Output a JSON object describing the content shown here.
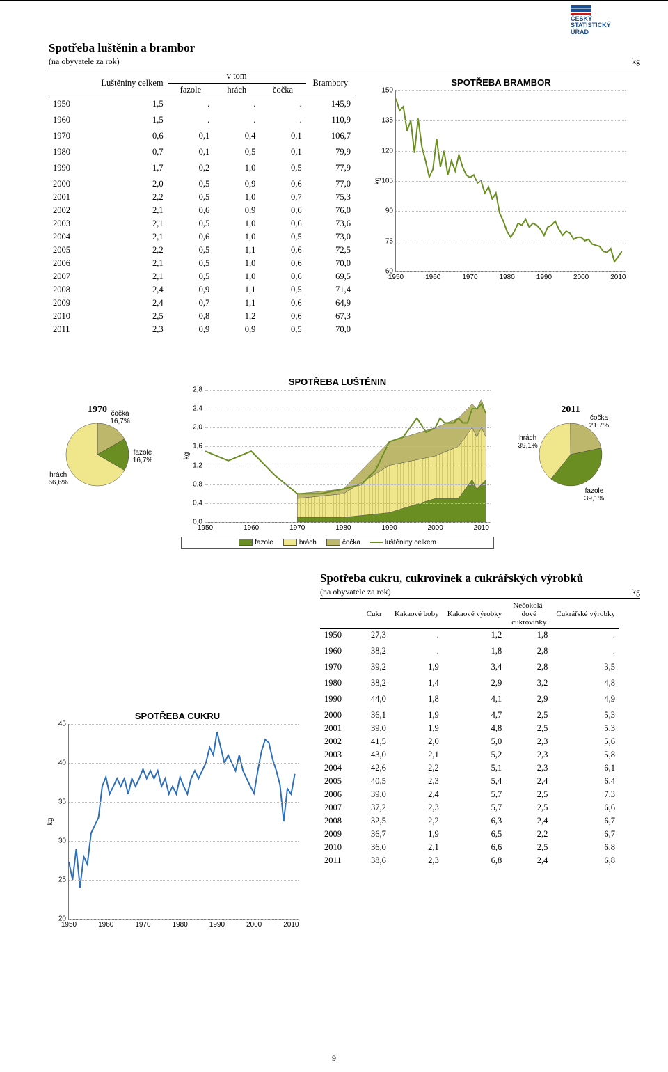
{
  "logo_l1": "ČESKÝ",
  "logo_l2": "STATISTICKÝ",
  "logo_l3": "ÚŘAD",
  "table1": {
    "title": "Spotřeba luštěnin a brambor",
    "subtitle": "(na obyvatele za rok)",
    "unit": "kg",
    "head": {
      "c0": "Luštěniny celkem",
      "group": "v tom",
      "c1": "fazole",
      "c2": "hrách",
      "c3": "čočka",
      "c4": "Brambory"
    },
    "rows": [
      [
        "1950",
        "1,5",
        ".",
        ".",
        ".",
        "145,9"
      ],
      [
        "1960",
        "1,5",
        ".",
        ".",
        ".",
        "110,9"
      ],
      [
        "1970",
        "0,6",
        "0,1",
        "0,4",
        "0,1",
        "106,7"
      ],
      [
        "1980",
        "0,7",
        "0,1",
        "0,5",
        "0,1",
        "79,9"
      ],
      [
        "1990",
        "1,7",
        "0,2",
        "1,0",
        "0,5",
        "77,9"
      ],
      [
        "2000",
        "2,0",
        "0,5",
        "0,9",
        "0,6",
        "77,0"
      ],
      [
        "2001",
        "2,2",
        "0,5",
        "1,0",
        "0,7",
        "75,3"
      ],
      [
        "2002",
        "2,1",
        "0,6",
        "0,9",
        "0,6",
        "76,0"
      ],
      [
        "2003",
        "2,1",
        "0,5",
        "1,0",
        "0,6",
        "73,6"
      ],
      [
        "2004",
        "2,1",
        "0,6",
        "1,0",
        "0,5",
        "73,0"
      ],
      [
        "2005",
        "2,2",
        "0,5",
        "1,1",
        "0,6",
        "72,5"
      ],
      [
        "2006",
        "2,1",
        "0,5",
        "1,0",
        "0,6",
        "70,0"
      ],
      [
        "2007",
        "2,1",
        "0,5",
        "1,0",
        "0,6",
        "69,5"
      ],
      [
        "2008",
        "2,4",
        "0,9",
        "1,1",
        "0,5",
        "71,4"
      ],
      [
        "2009",
        "2,4",
        "0,7",
        "1,1",
        "0,6",
        "64,9"
      ],
      [
        "2010",
        "2,5",
        "0,8",
        "1,2",
        "0,6",
        "67,3"
      ],
      [
        "2011",
        "2,3",
        "0,9",
        "0,9",
        "0,5",
        "70,0"
      ]
    ]
  },
  "chart_brambor": {
    "type": "line",
    "title": "SPOTŘEBA BRAMBOR",
    "ylabel": "kg",
    "xlim": [
      1950,
      2012
    ],
    "ylim": [
      60,
      150
    ],
    "ytick_step": 15,
    "xticks": [
      1950,
      1960,
      1970,
      1980,
      1990,
      2000,
      2010
    ],
    "line_color": "#6b8e23",
    "grid_color": "#bbbbbb",
    "points": [
      [
        1950,
        145.9
      ],
      [
        1951,
        140
      ],
      [
        1952,
        142
      ],
      [
        1953,
        130
      ],
      [
        1954,
        135
      ],
      [
        1955,
        119
      ],
      [
        1956,
        136
      ],
      [
        1957,
        122
      ],
      [
        1958,
        115
      ],
      [
        1959,
        107
      ],
      [
        1960,
        110.9
      ],
      [
        1961,
        126
      ],
      [
        1962,
        112
      ],
      [
        1963,
        120
      ],
      [
        1964,
        108
      ],
      [
        1965,
        115
      ],
      [
        1966,
        110
      ],
      [
        1967,
        118
      ],
      [
        1968,
        112
      ],
      [
        1969,
        108
      ],
      [
        1970,
        106.7
      ],
      [
        1971,
        108
      ],
      [
        1972,
        104
      ],
      [
        1973,
        105
      ],
      [
        1974,
        99
      ],
      [
        1975,
        102
      ],
      [
        1976,
        96
      ],
      [
        1977,
        99
      ],
      [
        1978,
        89
      ],
      [
        1979,
        85
      ],
      [
        1980,
        79.9
      ],
      [
        1981,
        77
      ],
      [
        1982,
        80
      ],
      [
        1983,
        84
      ],
      [
        1984,
        83
      ],
      [
        1985,
        86
      ],
      [
        1986,
        82
      ],
      [
        1987,
        84
      ],
      [
        1988,
        83
      ],
      [
        1989,
        81
      ],
      [
        1990,
        77.9
      ],
      [
        1991,
        82
      ],
      [
        1992,
        83
      ],
      [
        1993,
        85
      ],
      [
        1994,
        81
      ],
      [
        1995,
        78
      ],
      [
        1996,
        80
      ],
      [
        1997,
        79
      ],
      [
        1998,
        76
      ],
      [
        1999,
        77
      ],
      [
        2000,
        77.0
      ],
      [
        2001,
        75.3
      ],
      [
        2002,
        76.0
      ],
      [
        2003,
        73.6
      ],
      [
        2004,
        73.0
      ],
      [
        2005,
        72.5
      ],
      [
        2006,
        70.0
      ],
      [
        2007,
        69.5
      ],
      [
        2008,
        71.4
      ],
      [
        2009,
        64.9
      ],
      [
        2010,
        67.3
      ],
      [
        2011,
        70.0
      ]
    ]
  },
  "chart_lusten": {
    "type": "stacked-area-line",
    "title": "SPOTŘEBA LUŠTĚNIN",
    "ylabel": "kg",
    "xlim": [
      1950,
      2012
    ],
    "ylim": [
      0.0,
      2.8
    ],
    "yticks": [
      0.0,
      0.4,
      0.8,
      1.2,
      1.6,
      2.0,
      2.4,
      2.8
    ],
    "ytick_labels": [
      "0,0",
      "0,4",
      "0,8",
      "1,2",
      "1,6",
      "2,0",
      "2,4",
      "2,8"
    ],
    "xticks": [
      1950,
      1960,
      1970,
      1980,
      1990,
      2000,
      2010
    ],
    "colors": {
      "fazole": "#6b8e23",
      "hrach": "#f0e68c",
      "cocka": "#bdb76b",
      "total_line": "#6b8e23",
      "grid": "#bbbbbb"
    },
    "legend": {
      "fazole": "fazole",
      "hrach": "hrách",
      "cocka": "čočka",
      "total": "luštěniny celkem"
    },
    "total": [
      [
        1950,
        1.5
      ],
      [
        1955,
        1.3
      ],
      [
        1960,
        1.5
      ],
      [
        1965,
        1.0
      ],
      [
        1970,
        0.6
      ],
      [
        1975,
        0.6
      ],
      [
        1980,
        0.7
      ],
      [
        1984,
        0.8
      ],
      [
        1987,
        1.1
      ],
      [
        1990,
        1.7
      ],
      [
        1993,
        1.8
      ],
      [
        1996,
        2.2
      ],
      [
        1998,
        1.9
      ],
      [
        2000,
        2.0
      ],
      [
        2001,
        2.2
      ],
      [
        2002,
        2.1
      ],
      [
        2003,
        2.1
      ],
      [
        2004,
        2.1
      ],
      [
        2005,
        2.2
      ],
      [
        2006,
        2.1
      ],
      [
        2007,
        2.1
      ],
      [
        2008,
        2.4
      ],
      [
        2009,
        2.4
      ],
      [
        2010,
        2.5
      ],
      [
        2011,
        2.3
      ]
    ],
    "fazole": [
      [
        1970,
        0.1
      ],
      [
        1980,
        0.1
      ],
      [
        1990,
        0.2
      ],
      [
        2000,
        0.5
      ],
      [
        2005,
        0.5
      ],
      [
        2008,
        0.9
      ],
      [
        2009,
        0.7
      ],
      [
        2010,
        0.8
      ],
      [
        2011,
        0.9
      ]
    ],
    "hrach_cum": [
      [
        1970,
        0.5
      ],
      [
        1980,
        0.6
      ],
      [
        1990,
        1.2
      ],
      [
        2000,
        1.4
      ],
      [
        2005,
        1.6
      ],
      [
        2008,
        2.0
      ],
      [
        2009,
        1.8
      ],
      [
        2010,
        2.0
      ],
      [
        2011,
        1.8
      ]
    ],
    "cocka_cum": [
      [
        1970,
        0.6
      ],
      [
        1980,
        0.7
      ],
      [
        1990,
        1.7
      ],
      [
        2000,
        2.0
      ],
      [
        2005,
        2.2
      ],
      [
        2008,
        2.5
      ],
      [
        2009,
        2.4
      ],
      [
        2010,
        2.6
      ],
      [
        2011,
        2.3
      ]
    ]
  },
  "pie1970": {
    "title": "1970",
    "slices": [
      {
        "label": "čočka",
        "pct": "16,7%",
        "value": 16.7,
        "color": "#bdb76b"
      },
      {
        "label": "fazole",
        "pct": "16,7%",
        "value": 16.7,
        "color": "#6b8e23"
      },
      {
        "label": "hrách",
        "pct": "66,6%",
        "value": 66.6,
        "color": "#f0e68c"
      }
    ]
  },
  "pie2011": {
    "title": "2011",
    "slices": [
      {
        "label": "čočka",
        "pct": "21,7%",
        "value": 21.7,
        "color": "#bdb76b"
      },
      {
        "label": "fazole",
        "pct": "39,1%",
        "value": 39.1,
        "color": "#6b8e23"
      },
      {
        "label": "hrách",
        "pct": "39,1%",
        "value": 39.1,
        "color": "#f0e68c"
      }
    ]
  },
  "table2": {
    "title": "Spotřeba cukru, cukrovinek a cukrářských výrobků",
    "subtitle": "(na obyvatele za rok)",
    "unit": "kg",
    "head": {
      "c0": "Cukr",
      "c1": "Kakaové boby",
      "c2": "Kakaové výrobky",
      "c3": "Nečokolá-\ndové\ncukrovinky",
      "c4": "Cukrářské výrobky"
    },
    "rows": [
      [
        "1950",
        "27,3",
        ".",
        "1,2",
        "1,8",
        "."
      ],
      [
        "1960",
        "38,2",
        ".",
        "1,8",
        "2,8",
        "."
      ],
      [
        "1970",
        "39,2",
        "1,9",
        "3,4",
        "2,8",
        "3,5"
      ],
      [
        "1980",
        "38,2",
        "1,4",
        "2,9",
        "3,2",
        "4,8"
      ],
      [
        "1990",
        "44,0",
        "1,8",
        "4,1",
        "2,9",
        "4,9"
      ],
      [
        "2000",
        "36,1",
        "1,9",
        "4,7",
        "2,5",
        "5,3"
      ],
      [
        "2001",
        "39,0",
        "1,9",
        "4,8",
        "2,5",
        "5,3"
      ],
      [
        "2002",
        "41,5",
        "2,0",
        "5,0",
        "2,3",
        "5,6"
      ],
      [
        "2003",
        "43,0",
        "2,1",
        "5,2",
        "2,3",
        "5,8"
      ],
      [
        "2004",
        "42,6",
        "2,2",
        "5,1",
        "2,3",
        "6,1"
      ],
      [
        "2005",
        "40,5",
        "2,3",
        "5,4",
        "2,4",
        "6,4"
      ],
      [
        "2006",
        "39,0",
        "2,4",
        "5,7",
        "2,5",
        "7,3"
      ],
      [
        "2007",
        "37,2",
        "2,3",
        "5,7",
        "2,5",
        "6,6"
      ],
      [
        "2008",
        "32,5",
        "2,2",
        "6,3",
        "2,4",
        "6,7"
      ],
      [
        "2009",
        "36,7",
        "1,9",
        "6,5",
        "2,2",
        "6,7"
      ],
      [
        "2010",
        "36,0",
        "2,1",
        "6,6",
        "2,5",
        "6,8"
      ],
      [
        "2011",
        "38,6",
        "2,3",
        "6,8",
        "2,4",
        "6,8"
      ]
    ]
  },
  "chart_cukru": {
    "type": "line",
    "title": "SPOTŘEBA CUKRU",
    "ylabel": "kg",
    "xlim": [
      1950,
      2012
    ],
    "ylim": [
      20,
      45
    ],
    "ytick_step": 5,
    "xticks": [
      1950,
      1960,
      1970,
      1980,
      1990,
      2000,
      2010
    ],
    "line_color": "#2f6fb7",
    "grid_color": "#bbbbbb",
    "points": [
      [
        1950,
        27.3
      ],
      [
        1951,
        25
      ],
      [
        1952,
        29
      ],
      [
        1953,
        24
      ],
      [
        1954,
        28
      ],
      [
        1955,
        27
      ],
      [
        1956,
        31
      ],
      [
        1957,
        32
      ],
      [
        1958,
        33
      ],
      [
        1959,
        37
      ],
      [
        1960,
        38.2
      ],
      [
        1961,
        36
      ],
      [
        1962,
        37
      ],
      [
        1963,
        38
      ],
      [
        1964,
        37
      ],
      [
        1965,
        38
      ],
      [
        1966,
        36
      ],
      [
        1967,
        38
      ],
      [
        1968,
        37
      ],
      [
        1969,
        38
      ],
      [
        1970,
        39.2
      ],
      [
        1971,
        38
      ],
      [
        1972,
        39
      ],
      [
        1973,
        38
      ],
      [
        1974,
        39
      ],
      [
        1975,
        37
      ],
      [
        1976,
        38
      ],
      [
        1977,
        36
      ],
      [
        1978,
        37
      ],
      [
        1979,
        36
      ],
      [
        1980,
        38.2
      ],
      [
        1981,
        37
      ],
      [
        1982,
        36
      ],
      [
        1983,
        38
      ],
      [
        1984,
        39
      ],
      [
        1985,
        38
      ],
      [
        1986,
        39
      ],
      [
        1987,
        40
      ],
      [
        1988,
        42
      ],
      [
        1989,
        41
      ],
      [
        1990,
        44.0
      ],
      [
        1991,
        42
      ],
      [
        1992,
        40
      ],
      [
        1993,
        41
      ],
      [
        1994,
        40
      ],
      [
        1995,
        39
      ],
      [
        1996,
        41
      ],
      [
        1997,
        39
      ],
      [
        1998,
        38
      ],
      [
        1999,
        37
      ],
      [
        2000,
        36.1
      ],
      [
        2001,
        39.0
      ],
      [
        2002,
        41.5
      ],
      [
        2003,
        43.0
      ],
      [
        2004,
        42.6
      ],
      [
        2005,
        40.5
      ],
      [
        2006,
        39.0
      ],
      [
        2007,
        37.2
      ],
      [
        2008,
        32.5
      ],
      [
        2009,
        36.7
      ],
      [
        2010,
        36.0
      ],
      [
        2011,
        38.6
      ]
    ]
  },
  "page_number": "9"
}
